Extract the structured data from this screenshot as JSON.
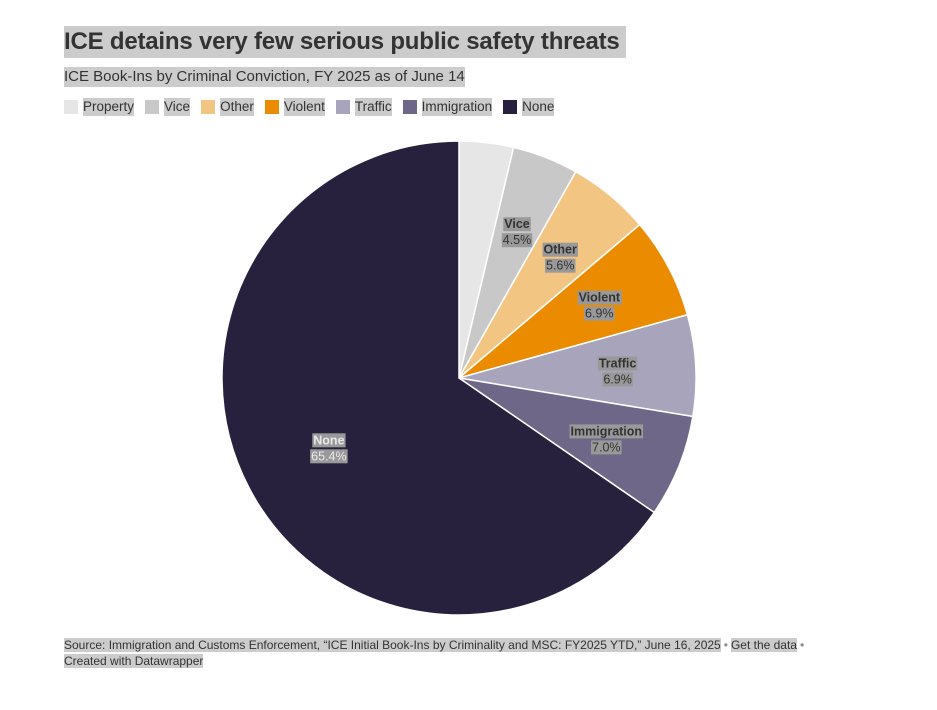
{
  "title": "ICE detains very few serious public safety threats",
  "subtitle": "ICE Book-Ins by Criminal Conviction, FY 2025 as of June 14",
  "legend": [
    {
      "label": "Property",
      "color": "#e6e6e6"
    },
    {
      "label": "Vice",
      "color": "#c8c8c8"
    },
    {
      "label": "Other",
      "color": "#f2c582"
    },
    {
      "label": "Violent",
      "color": "#eb8c00"
    },
    {
      "label": "Traffic",
      "color": "#a8a4bc"
    },
    {
      "label": "Immigration",
      "color": "#6e6787"
    },
    {
      "label": "None",
      "color": "#28213d"
    }
  ],
  "chart_data": {
    "type": "pie",
    "title": "ICE detains very few serious public safety threats",
    "categories": [
      "Property",
      "Vice",
      "Other",
      "Violent",
      "Traffic",
      "Immigration",
      "None"
    ],
    "values": [
      3.7,
      4.5,
      5.6,
      6.9,
      6.9,
      7.0,
      65.4
    ],
    "unit": "%",
    "value_labels": [
      "",
      "4.5%",
      "5.6%",
      "6.9%",
      "6.9%",
      "7.0%",
      "65.4%"
    ],
    "labeled": [
      false,
      true,
      true,
      true,
      true,
      true,
      true
    ],
    "colors": [
      "#e6e6e6",
      "#c8c8c8",
      "#f2c582",
      "#eb8c00",
      "#a8a4bc",
      "#6e6787",
      "#28213d"
    ],
    "start": "12 o'clock, clockwise",
    "legend_position": "top-left"
  },
  "footer": {
    "source": "Source: Immigration and Customs Enforcement, “ICE Initial Book-Ins by Criminality and MSC: FY2025 YTD,” June 16, 2025",
    "separator": "•",
    "get_data": "Get the data",
    "credit": "Created with Datawrapper"
  }
}
